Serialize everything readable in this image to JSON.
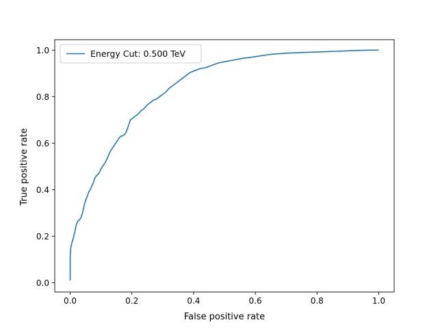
{
  "chart_data": {
    "type": "line",
    "title": "",
    "xlabel": "False positive rate",
    "ylabel": "True positive rate",
    "xlim": [
      -0.05,
      1.05
    ],
    "ylim": [
      -0.04,
      1.045
    ],
    "xticks": [
      0.0,
      0.2,
      0.4,
      0.6,
      0.8,
      1.0
    ],
    "yticks": [
      0.0,
      0.2,
      0.4,
      0.6,
      0.8,
      1.0
    ],
    "xtick_labels": [
      "0.0",
      "0.2",
      "0.4",
      "0.6",
      "0.8",
      "1.0"
    ],
    "ytick_labels": [
      "0.0",
      "0.2",
      "0.4",
      "0.6",
      "0.8",
      "1.0"
    ],
    "grid": false,
    "legend_position": "top-left",
    "series": [
      {
        "name": "Energy Cut: 0.500 TeV",
        "color": "#1f77b4",
        "x": [
          0.0,
          0.0,
          0.002,
          0.005,
          0.01,
          0.015,
          0.02,
          0.025,
          0.03,
          0.035,
          0.04,
          0.045,
          0.05,
          0.055,
          0.06,
          0.065,
          0.07,
          0.075,
          0.08,
          0.085,
          0.09,
          0.095,
          0.1,
          0.105,
          0.11,
          0.115,
          0.12,
          0.125,
          0.13,
          0.135,
          0.14,
          0.145,
          0.15,
          0.155,
          0.16,
          0.165,
          0.17,
          0.175,
          0.18,
          0.185,
          0.19,
          0.195,
          0.2,
          0.21,
          0.22,
          0.23,
          0.24,
          0.25,
          0.26,
          0.27,
          0.28,
          0.29,
          0.3,
          0.31,
          0.32,
          0.33,
          0.34,
          0.35,
          0.36,
          0.37,
          0.38,
          0.39,
          0.4,
          0.42,
          0.44,
          0.46,
          0.48,
          0.5,
          0.52,
          0.54,
          0.56,
          0.58,
          0.6,
          0.62,
          0.64,
          0.66,
          0.68,
          0.7,
          0.72,
          0.74,
          0.76,
          0.78,
          0.8,
          0.82,
          0.84,
          0.86,
          0.88,
          0.9,
          0.92,
          0.94,
          0.96,
          0.98,
          1.0
        ],
        "y": [
          0.01,
          0.11,
          0.15,
          0.17,
          0.19,
          0.22,
          0.25,
          0.265,
          0.27,
          0.28,
          0.3,
          0.33,
          0.355,
          0.37,
          0.39,
          0.4,
          0.415,
          0.43,
          0.45,
          0.46,
          0.465,
          0.475,
          0.49,
          0.5,
          0.51,
          0.52,
          0.535,
          0.55,
          0.565,
          0.575,
          0.585,
          0.595,
          0.605,
          0.615,
          0.625,
          0.63,
          0.632,
          0.635,
          0.645,
          0.66,
          0.68,
          0.7,
          0.705,
          0.715,
          0.725,
          0.74,
          0.75,
          0.765,
          0.775,
          0.785,
          0.79,
          0.8,
          0.81,
          0.82,
          0.835,
          0.845,
          0.855,
          0.865,
          0.875,
          0.885,
          0.895,
          0.905,
          0.91,
          0.92,
          0.925,
          0.935,
          0.945,
          0.95,
          0.955,
          0.96,
          0.965,
          0.968,
          0.972,
          0.976,
          0.98,
          0.983,
          0.985,
          0.987,
          0.988,
          0.989,
          0.99,
          0.991,
          0.992,
          0.993,
          0.994,
          0.995,
          0.996,
          0.997,
          0.998,
          0.999,
          0.9995,
          1.0,
          1.0
        ]
      }
    ]
  }
}
